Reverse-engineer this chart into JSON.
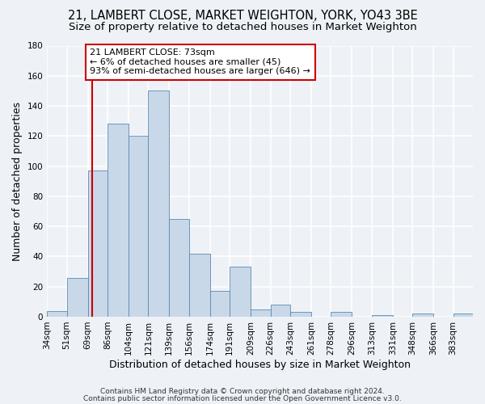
{
  "title": "21, LAMBERT CLOSE, MARKET WEIGHTON, YORK, YO43 3BE",
  "subtitle": "Size of property relative to detached houses in Market Weighton",
  "xlabel": "Distribution of detached houses by size in Market Weighton",
  "ylabel": "Number of detached properties",
  "bar_color": "#c8d8e8",
  "bar_edge_color": "#5a8ab0",
  "background_color": "#eef2f7",
  "grid_color": "#ffffff",
  "bin_labels": [
    "34sqm",
    "51sqm",
    "69sqm",
    "86sqm",
    "104sqm",
    "121sqm",
    "139sqm",
    "156sqm",
    "174sqm",
    "191sqm",
    "209sqm",
    "226sqm",
    "243sqm",
    "261sqm",
    "278sqm",
    "296sqm",
    "313sqm",
    "331sqm",
    "348sqm",
    "366sqm",
    "383sqm"
  ],
  "bin_edges": [
    34,
    51,
    69,
    86,
    104,
    121,
    139,
    156,
    174,
    191,
    209,
    226,
    243,
    261,
    278,
    296,
    313,
    331,
    348,
    366,
    383
  ],
  "bar_heights": [
    4,
    26,
    97,
    128,
    120,
    150,
    65,
    42,
    17,
    33,
    5,
    8,
    3,
    0,
    3,
    0,
    1,
    0,
    2,
    0,
    2
  ],
  "ylim": [
    0,
    180
  ],
  "yticks": [
    0,
    20,
    40,
    60,
    80,
    100,
    120,
    140,
    160,
    180
  ],
  "vline_x": 73,
  "vline_color": "#cc0000",
  "annotation_text": "21 LAMBERT CLOSE: 73sqm\n← 6% of detached houses are smaller (45)\n93% of semi-detached houses are larger (646) →",
  "annotation_box_color": "#ffffff",
  "annotation_box_edge_color": "#cc0000",
  "footer_line1": "Contains HM Land Registry data © Crown copyright and database right 2024.",
  "footer_line2": "Contains public sector information licensed under the Open Government Licence v3.0.",
  "title_fontsize": 10.5,
  "subtitle_fontsize": 9.5,
  "tick_label_fontsize": 7.5,
  "ylabel_fontsize": 9,
  "xlabel_fontsize": 9,
  "annotation_fontsize": 8,
  "footer_fontsize": 6.5
}
